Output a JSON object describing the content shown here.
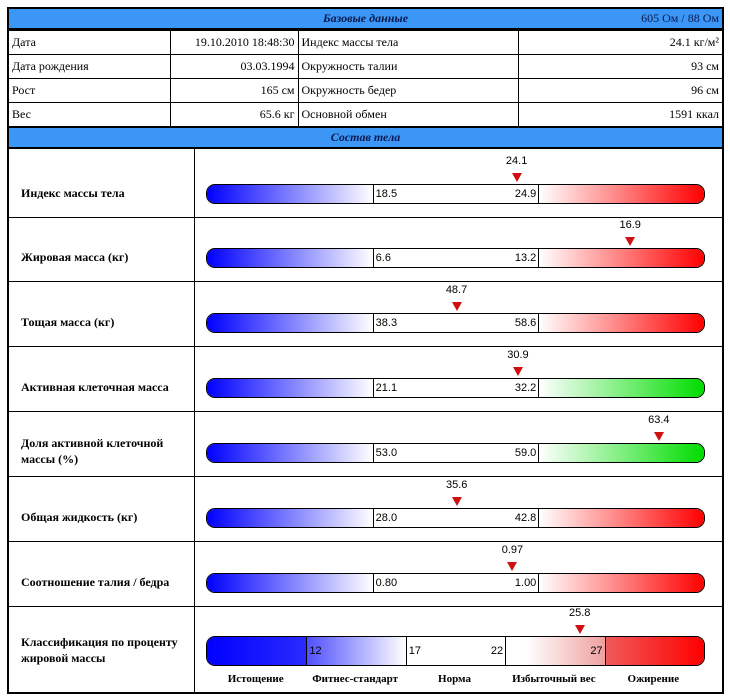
{
  "base": {
    "title": "Базовые данные",
    "impedance": "605 Ом / 88 Ом",
    "rows": [
      {
        "l1": "Дата",
        "v1": "19.10.2010 18:48:30",
        "l2": "Индекс массы тела",
        "v2": "24.1 кг/м²"
      },
      {
        "l1": "Дата рождения",
        "v1": "03.03.1994",
        "l2": "Окружность талии",
        "v2": "93 см"
      },
      {
        "l1": "Рост",
        "v1": "165 см",
        "l2": "Окружность бедер",
        "v2": "96 см"
      },
      {
        "l1": "Вес",
        "v1": "65.6 кг",
        "l2": "Основной обмен",
        "v2": "1591 ккал"
      }
    ]
  },
  "composition": {
    "title": "Состав тела",
    "rows": [
      {
        "label": "Индекс массы тела",
        "lo": "18.5",
        "hi": "24.9",
        "value": "24.1",
        "high_color": "red"
      },
      {
        "label": "Жировая масса (кг)",
        "lo": "6.6",
        "hi": "13.2",
        "value": "16.9",
        "high_color": "red"
      },
      {
        "label": "Тощая масса (кг)",
        "lo": "38.3",
        "hi": "58.6",
        "value": "48.7",
        "high_color": "red"
      },
      {
        "label": "Активная клеточная масса",
        "lo": "21.1",
        "hi": "32.2",
        "value": "30.9",
        "high_color": "green"
      },
      {
        "label": "Доля активной клеточной массы (%)",
        "lo": "53.0",
        "hi": "59.0",
        "value": "63.4",
        "high_color": "green"
      },
      {
        "label": "Общая жидкость (кг)",
        "lo": "28.0",
        "hi": "42.8",
        "value": "35.6",
        "high_color": "red"
      },
      {
        "label": "Соотношение талия / бедра",
        "lo": "0.80",
        "hi": "1.00",
        "value": "0.97",
        "high_color": "red"
      }
    ],
    "classification": {
      "label": "Классификация по проценту жировой массы",
      "thresholds": [
        "12",
        "17",
        "22",
        "27"
      ],
      "value": "25.8",
      "classes": [
        "Истощение",
        "Фитнес-стандарт",
        "Норма",
        "Избыточный вес",
        "Ожирение"
      ]
    }
  },
  "colors": {
    "header": "#3c96f5",
    "low": "#0000ff",
    "high_red": "#ff0000",
    "high_green": "#00dd00",
    "marker": "#d01010"
  }
}
